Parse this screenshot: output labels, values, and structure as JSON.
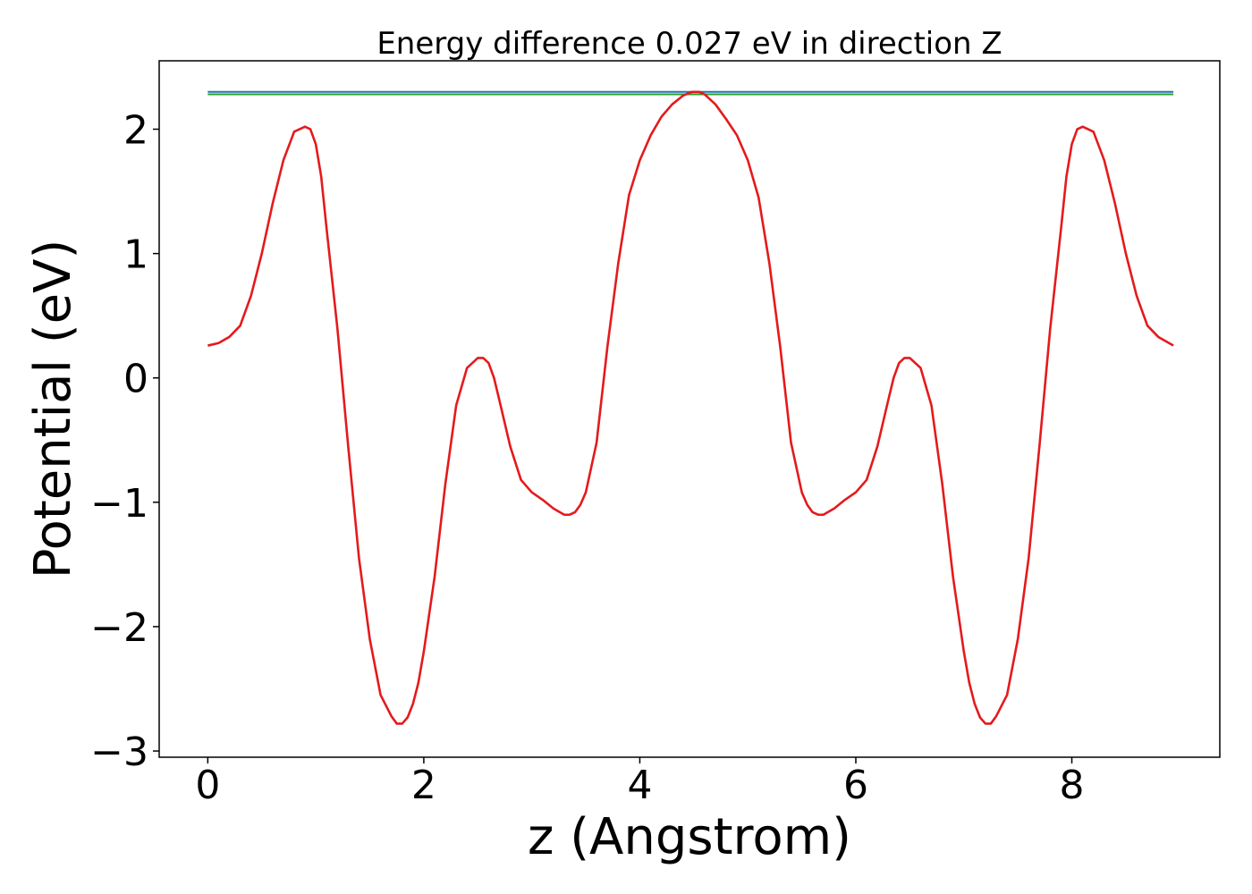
{
  "chart_data": {
    "type": "line",
    "title": "Energy difference 0.027 eV in direction Z",
    "xlabel": "z (Angstrom)",
    "ylabel": "Potential (eV)",
    "xlim": [
      -0.45,
      9.37
    ],
    "ylim": [
      -3.05,
      2.55
    ],
    "xticks": [
      0,
      2,
      4,
      6,
      8
    ],
    "yticks": [
      -3,
      -2,
      -1,
      0,
      1,
      2
    ],
    "xtick_labels": [
      "0",
      "2",
      "4",
      "6",
      "8"
    ],
    "ytick_labels": [
      "−3",
      "−2",
      "−1",
      "0",
      "1",
      "2"
    ],
    "grid": false,
    "series": [
      {
        "color": "#e41a1c",
        "x": [
          0.0,
          0.1,
          0.2,
          0.3,
          0.4,
          0.5,
          0.6,
          0.7,
          0.8,
          0.9,
          0.95,
          1.0,
          1.05,
          1.1,
          1.2,
          1.3,
          1.4,
          1.5,
          1.6,
          1.7,
          1.75,
          1.8,
          1.85,
          1.9,
          1.95,
          2.0,
          2.1,
          2.2,
          2.3,
          2.4,
          2.5,
          2.55,
          2.6,
          2.65,
          2.7,
          2.8,
          2.9,
          3.0,
          3.1,
          3.2,
          3.3,
          3.35,
          3.4,
          3.45,
          3.5,
          3.6,
          3.7,
          3.8,
          3.9,
          4.0,
          4.1,
          4.2,
          4.3,
          4.4,
          4.48,
          4.55,
          4.6,
          4.7,
          4.8,
          4.9,
          5.0,
          5.1,
          5.2,
          5.3,
          5.4,
          5.5,
          5.55,
          5.6,
          5.65,
          5.7,
          5.8,
          5.9,
          6.0,
          6.1,
          6.2,
          6.3,
          6.35,
          6.4,
          6.45,
          6.5,
          6.6,
          6.7,
          6.8,
          6.9,
          7.0,
          7.05,
          7.1,
          7.15,
          7.2,
          7.25,
          7.3,
          7.4,
          7.5,
          7.6,
          7.7,
          7.8,
          7.9,
          7.95,
          8.0,
          8.05,
          8.1,
          8.2,
          8.3,
          8.4,
          8.5,
          8.6,
          8.7,
          8.8,
          8.94
        ],
        "y": [
          0.26,
          0.28,
          0.33,
          0.42,
          0.66,
          1.0,
          1.4,
          1.75,
          1.98,
          2.02,
          2.0,
          1.88,
          1.62,
          1.2,
          0.4,
          -0.55,
          -1.45,
          -2.1,
          -2.55,
          -2.72,
          -2.78,
          -2.78,
          -2.73,
          -2.62,
          -2.45,
          -2.2,
          -1.6,
          -0.85,
          -0.22,
          0.08,
          0.16,
          0.16,
          0.12,
          0.0,
          -0.18,
          -0.55,
          -0.82,
          -0.92,
          -0.98,
          -1.05,
          -1.1,
          -1.1,
          -1.08,
          -1.02,
          -0.92,
          -0.52,
          0.25,
          0.92,
          1.47,
          1.75,
          1.95,
          2.1,
          2.2,
          2.27,
          2.3,
          2.3,
          2.28,
          2.2,
          2.08,
          1.95,
          1.75,
          1.45,
          0.92,
          0.25,
          -0.52,
          -0.92,
          -1.02,
          -1.08,
          -1.1,
          -1.1,
          -1.05,
          -0.98,
          -0.92,
          -0.82,
          -0.55,
          -0.18,
          0.0,
          0.12,
          0.16,
          0.16,
          0.08,
          -0.22,
          -0.85,
          -1.6,
          -2.2,
          -2.45,
          -2.62,
          -2.73,
          -2.78,
          -2.78,
          -2.72,
          -2.55,
          -2.1,
          -1.45,
          -0.55,
          0.4,
          1.2,
          1.62,
          1.88,
          2.0,
          2.02,
          1.98,
          1.75,
          1.4,
          1.0,
          0.66,
          0.42,
          0.33,
          0.26
        ]
      },
      {
        "color": "#1f77b4",
        "x": [
          0.0,
          8.94
        ],
        "y": [
          2.3,
          2.3
        ]
      },
      {
        "color": "#2ca02c",
        "x": [
          0.0,
          8.94
        ],
        "y": [
          2.28,
          2.28
        ]
      }
    ]
  }
}
